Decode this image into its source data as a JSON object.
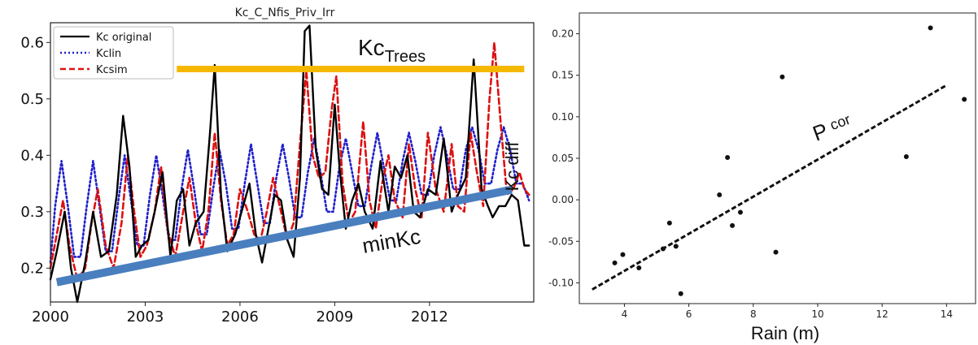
{
  "chart_data": [
    {
      "type": "line",
      "title": "Kc_C_Nfis_Priv_Irr",
      "x_ticks": [
        "2000",
        "2003",
        "2006",
        "2009",
        "2012"
      ],
      "y_ticks": [
        "0.2",
        "0.3",
        "0.4",
        "0.5",
        "0.6"
      ],
      "xlim": [
        2000,
        2015.3
      ],
      "ylim": [
        0.14,
        0.635
      ],
      "legend": {
        "placement": "top-left"
      },
      "series": [
        {
          "name": "Kc original",
          "color": "#000000",
          "style": "solid",
          "x": [
            2000.0,
            2000.2,
            2000.45,
            2000.65,
            2000.85,
            2001.1,
            2001.35,
            2001.6,
            2001.85,
            2002.1,
            2002.3,
            2002.5,
            2002.7,
            2002.9,
            2003.1,
            2003.3,
            2003.55,
            2003.8,
            2004.0,
            2004.2,
            2004.4,
            2004.6,
            2004.85,
            2005.05,
            2005.2,
            2005.4,
            2005.6,
            2005.85,
            2006.05,
            2006.3,
            2006.5,
            2006.7,
            2006.9,
            2007.1,
            2007.3,
            2007.5,
            2007.7,
            2007.9,
            2008.05,
            2008.2,
            2008.4,
            2008.6,
            2008.8,
            2009.0,
            2009.15,
            2009.35,
            2009.55,
            2009.75,
            2009.95,
            2010.2,
            2010.45,
            2010.7,
            2010.9,
            2011.1,
            2011.3,
            2011.5,
            2011.7,
            2011.95,
            2012.2,
            2012.45,
            2012.7,
            2012.9,
            2013.15,
            2013.4,
            2013.65,
            2013.85,
            2014.0,
            2014.2,
            2014.4,
            2014.6,
            2014.8,
            2015.0,
            2015.15
          ],
          "y": [
            0.18,
            0.23,
            0.3,
            0.2,
            0.14,
            0.21,
            0.3,
            0.22,
            0.23,
            0.33,
            0.47,
            0.38,
            0.22,
            0.24,
            0.25,
            0.3,
            0.37,
            0.22,
            0.32,
            0.34,
            0.24,
            0.28,
            0.3,
            0.44,
            0.56,
            0.33,
            0.23,
            0.26,
            0.3,
            0.35,
            0.26,
            0.21,
            0.27,
            0.33,
            0.32,
            0.25,
            0.22,
            0.36,
            0.62,
            0.63,
            0.41,
            0.34,
            0.33,
            0.49,
            0.38,
            0.27,
            0.32,
            0.35,
            0.3,
            0.27,
            0.39,
            0.3,
            0.38,
            0.36,
            0.4,
            0.3,
            0.29,
            0.34,
            0.33,
            0.43,
            0.3,
            0.33,
            0.36,
            0.57,
            0.34,
            0.31,
            0.29,
            0.31,
            0.31,
            0.33,
            0.32,
            0.24,
            0.24
          ]
        },
        {
          "name": "Kclin",
          "color": "#1f1fcc",
          "style": "dotted",
          "x": [
            2000.0,
            2000.15,
            2000.35,
            2000.55,
            2000.75,
            2000.95,
            2001.15,
            2001.35,
            2001.55,
            2001.75,
            2001.95,
            2002.15,
            2002.35,
            2002.55,
            2002.75,
            2002.95,
            2003.15,
            2003.35,
            2003.55,
            2003.75,
            2003.95,
            2004.15,
            2004.35,
            2004.55,
            2004.75,
            2004.95,
            2005.15,
            2005.35,
            2005.55,
            2005.75,
            2005.95,
            2006.15,
            2006.35,
            2006.55,
            2006.75,
            2006.95,
            2007.15,
            2007.35,
            2007.55,
            2007.75,
            2007.95,
            2008.15,
            2008.35,
            2008.55,
            2008.75,
            2008.95,
            2009.15,
            2009.35,
            2009.55,
            2009.75,
            2009.95,
            2010.15,
            2010.35,
            2010.55,
            2010.75,
            2010.95,
            2011.15,
            2011.35,
            2011.55,
            2011.75,
            2011.95,
            2012.15,
            2012.35,
            2012.55,
            2012.75,
            2012.95,
            2013.15,
            2013.35,
            2013.55,
            2013.75,
            2013.95,
            2014.15,
            2014.35,
            2014.55,
            2014.75,
            2014.95,
            2015.15
          ],
          "y": [
            0.21,
            0.31,
            0.39,
            0.31,
            0.22,
            0.22,
            0.31,
            0.39,
            0.31,
            0.23,
            0.23,
            0.32,
            0.4,
            0.32,
            0.24,
            0.24,
            0.33,
            0.4,
            0.33,
            0.25,
            0.25,
            0.34,
            0.41,
            0.34,
            0.26,
            0.26,
            0.34,
            0.41,
            0.35,
            0.27,
            0.27,
            0.35,
            0.42,
            0.35,
            0.28,
            0.28,
            0.36,
            0.42,
            0.36,
            0.29,
            0.29,
            0.37,
            0.43,
            0.37,
            0.3,
            0.3,
            0.38,
            0.43,
            0.37,
            0.31,
            0.31,
            0.38,
            0.44,
            0.38,
            0.32,
            0.32,
            0.39,
            0.44,
            0.39,
            0.33,
            0.33,
            0.4,
            0.45,
            0.4,
            0.34,
            0.34,
            0.41,
            0.45,
            0.41,
            0.35,
            0.35,
            0.41,
            0.45,
            0.41,
            0.35,
            0.35,
            0.32
          ]
        },
        {
          "name": "Kcsim",
          "color": "#dd1111",
          "style": "dashed",
          "x": [
            2000.0,
            2000.2,
            2000.4,
            2000.6,
            2000.85,
            2001.1,
            2001.3,
            2001.5,
            2001.75,
            2002.0,
            2002.25,
            2002.45,
            2002.65,
            2002.85,
            2003.05,
            2003.3,
            2003.5,
            2003.7,
            2003.95,
            2004.2,
            2004.4,
            2004.6,
            2004.8,
            2005.0,
            2005.2,
            2005.4,
            2005.6,
            2005.8,
            2006.0,
            2006.25,
            2006.45,
            2006.65,
            2006.85,
            2007.05,
            2007.3,
            2007.5,
            2007.7,
            2007.9,
            2008.1,
            2008.3,
            2008.5,
            2008.7,
            2008.9,
            2009.05,
            2009.25,
            2009.45,
            2009.65,
            2009.9,
            2010.1,
            2010.3,
            2010.5,
            2010.7,
            2010.9,
            2011.15,
            2011.35,
            2011.55,
            2011.75,
            2011.95,
            2012.2,
            2012.45,
            2012.7,
            2012.9,
            2013.1,
            2013.3,
            2013.5,
            2013.7,
            2013.9,
            2014.05,
            2014.25,
            2014.45,
            2014.65,
            2014.85,
            2015.0,
            2015.15
          ],
          "y": [
            0.2,
            0.26,
            0.32,
            0.24,
            0.18,
            0.2,
            0.28,
            0.34,
            0.24,
            0.2,
            0.28,
            0.4,
            0.3,
            0.22,
            0.24,
            0.3,
            0.38,
            0.27,
            0.22,
            0.3,
            0.36,
            0.28,
            0.23,
            0.3,
            0.44,
            0.32,
            0.24,
            0.26,
            0.34,
            0.3,
            0.26,
            0.25,
            0.3,
            0.36,
            0.3,
            0.25,
            0.28,
            0.42,
            0.55,
            0.4,
            0.36,
            0.37,
            0.48,
            0.54,
            0.35,
            0.28,
            0.3,
            0.46,
            0.32,
            0.27,
            0.35,
            0.4,
            0.32,
            0.29,
            0.42,
            0.34,
            0.29,
            0.44,
            0.34,
            0.3,
            0.42,
            0.31,
            0.3,
            0.44,
            0.37,
            0.31,
            0.5,
            0.6,
            0.46,
            0.33,
            0.34,
            0.37,
            0.34,
            0.33
          ]
        }
      ],
      "annotations": {
        "kc_trees_main": "Kc",
        "kc_trees_sub": "Trees",
        "kc_trees_line_y": 0.553,
        "kc_trees_line_x": [
          2004.0,
          2015.0
        ],
        "kc_trees_color": "#f5b800",
        "minkc_label": "minKc",
        "minkc_line": {
          "x": [
            2000.2,
            2014.6
          ],
          "y": [
            0.175,
            0.339
          ]
        },
        "minkc_color": "#4a7fbf"
      }
    },
    {
      "type": "scatter",
      "xlabel": "Rain (m)",
      "ylabel": "Kc diff",
      "x_ticks": [
        "4",
        "6",
        "8",
        "10",
        "12",
        "14"
      ],
      "y_ticks": [
        "-0.10",
        "-0.05",
        "0.00",
        "0.05",
        "0.10",
        "0.15",
        "0.20"
      ],
      "xlim": [
        2.6,
        14.9
      ],
      "ylim": [
        -0.125,
        0.225
      ],
      "points": {
        "x": [
          3.7,
          3.95,
          4.45,
          5.2,
          5.4,
          5.6,
          5.75,
          6.95,
          7.2,
          7.35,
          7.6,
          8.7,
          8.9,
          12.75,
          13.5,
          14.55
        ],
        "y": [
          -0.076,
          -0.066,
          -0.082,
          -0.059,
          -0.028,
          -0.056,
          -0.113,
          0.006,
          0.051,
          -0.031,
          -0.015,
          -0.063,
          0.148,
          0.052,
          0.207,
          0.121
        ]
      },
      "trend_line": {
        "name": "P cor",
        "x": [
          3.0,
          14.0
        ],
        "y": [
          -0.108,
          0.138
        ]
      },
      "annotations": {
        "pcor_main": "P",
        "pcor_sub": "cor"
      }
    }
  ]
}
